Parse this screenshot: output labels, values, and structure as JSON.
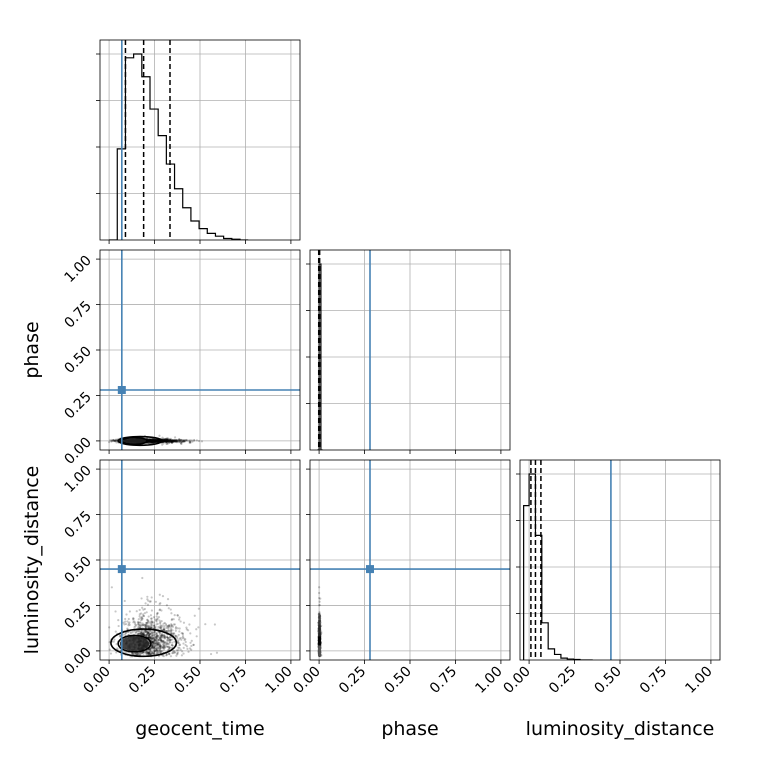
{
  "chart_data": {
    "type": "corner",
    "parameters": [
      {
        "key": "geocent_time",
        "label": "geocent_time"
      },
      {
        "key": "phase",
        "label": "phase"
      },
      {
        "key": "luminosity_distance",
        "label": "luminosity_distance"
      }
    ],
    "axis_range": [
      -0.05,
      1.05
    ],
    "ticks": [
      0.0,
      0.25,
      0.5,
      0.75,
      1.0
    ],
    "tick_labels": [
      "0.00",
      "0.25",
      "0.50",
      "0.75",
      "1.00"
    ],
    "truths": {
      "geocent_time": 0.07,
      "phase": 0.28,
      "luminosity_distance": 0.45
    },
    "truth_color": "#4682b4",
    "histogram_color": "#000000",
    "grid": true,
    "histograms": {
      "geocent_time": {
        "bin_edges": [
          0.0,
          0.045,
          0.09,
          0.135,
          0.18,
          0.225,
          0.27,
          0.315,
          0.36,
          0.405,
          0.45,
          0.495,
          0.54,
          0.585,
          0.63,
          0.675,
          0.72,
          0.765
        ],
        "counts": [
          0.0,
          0.48,
          0.96,
          0.98,
          0.86,
          0.69,
          0.55,
          0.4,
          0.27,
          0.17,
          0.1,
          0.06,
          0.035,
          0.02,
          0.008,
          0.004,
          0.0
        ],
        "quantiles": [
          0.09,
          0.19,
          0.335
        ]
      },
      "phase": {
        "bin_edges": [
          -0.01,
          0.0,
          0.01,
          0.02
        ],
        "counts": [
          0.0,
          1.0,
          0.0
        ],
        "quantiles": [
          -0.002,
          0.0,
          0.003
        ]
      },
      "luminosity_distance": {
        "bin_edges": [
          -0.03,
          0.0,
          0.035,
          0.07,
          0.105,
          0.14,
          0.175,
          0.21,
          0.245,
          0.28,
          0.315,
          0.35
        ],
        "counts": [
          0.83,
          1.0,
          0.67,
          0.2,
          0.06,
          0.03,
          0.01,
          0.005,
          0.003,
          0.0,
          0.0
        ],
        "quantiles": [
          0.01,
          0.035,
          0.065
        ]
      }
    },
    "densities": {
      "phase_vs_geocent_time": {
        "center": [
          0.15,
          0.0
        ],
        "spread": [
          0.12,
          0.004
        ],
        "x_extent": [
          0.0,
          0.76
        ],
        "contours": [
          {
            "center": [
              0.14,
              0.0
            ],
            "rx": 0.07,
            "ry": 0.018
          },
          {
            "center": [
              0.17,
              0.0
            ],
            "rx": 0.12,
            "ry": 0.024
          }
        ]
      },
      "luminosity_distance_vs_geocent_time": {
        "center": [
          0.16,
          0.05
        ],
        "spread": [
          0.12,
          0.06
        ],
        "x_extent": [
          0.0,
          0.78
        ],
        "y_extent": [
          -0.03,
          0.62
        ],
        "contours": [
          {
            "center": [
              0.14,
              0.04
            ],
            "rx": 0.09,
            "ry": 0.045
          },
          {
            "center": [
              0.19,
              0.045
            ],
            "rx": 0.18,
            "ry": 0.075
          }
        ]
      },
      "luminosity_distance_vs_phase": {
        "center": [
          0.0,
          0.05
        ],
        "spread": [
          0.004,
          0.06
        ],
        "y_extent": [
          -0.03,
          0.68
        ]
      }
    }
  }
}
